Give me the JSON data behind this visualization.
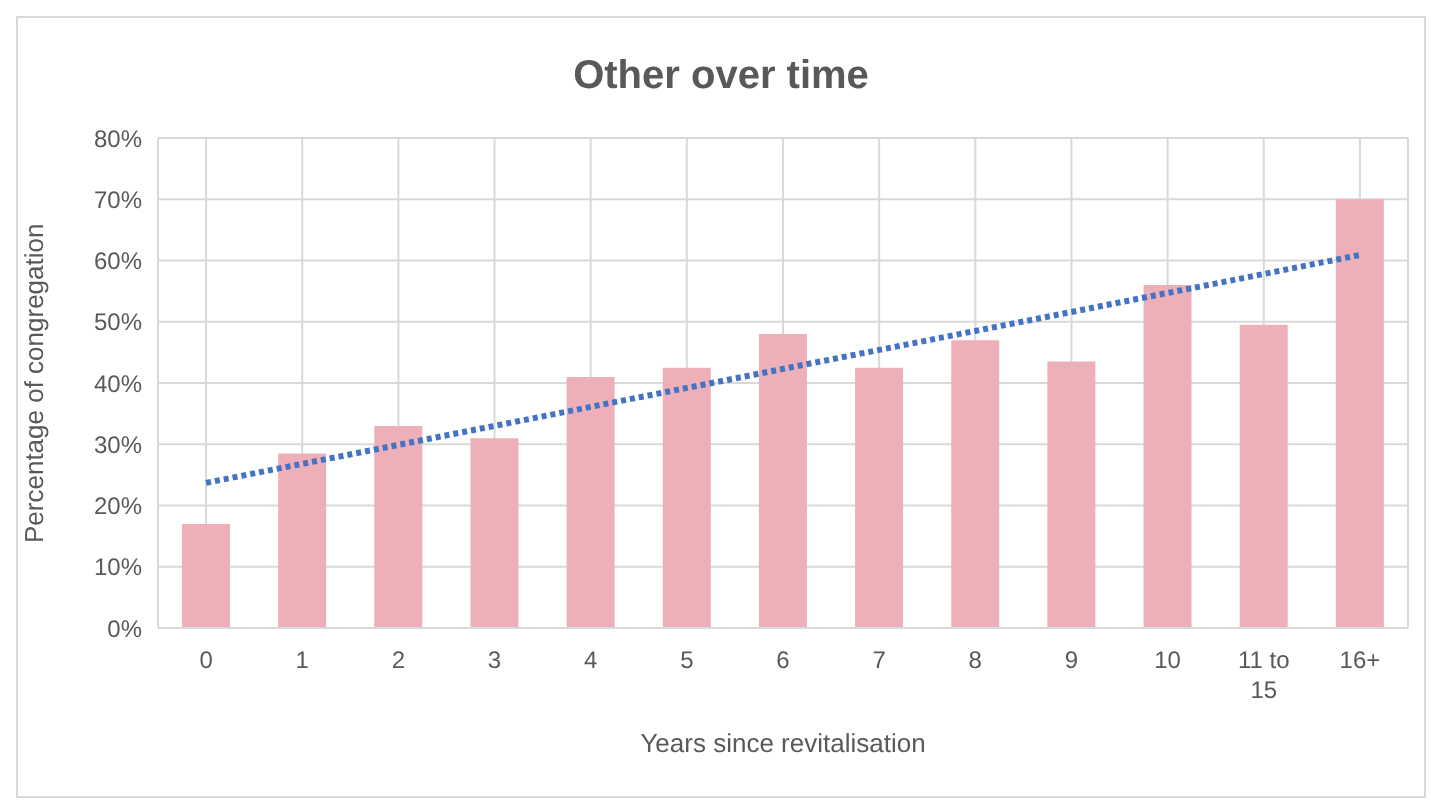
{
  "chart_data": {
    "type": "bar",
    "title": "Other over time",
    "xlabel": "Years since revitalisation",
    "ylabel": "Percentage of congregation",
    "categories": [
      "0",
      "1",
      "2",
      "3",
      "4",
      "5",
      "6",
      "7",
      "8",
      "9",
      "10",
      "11 to 15",
      "16+"
    ],
    "series": [
      {
        "color": "#eeb0b8",
        "values": [
          17,
          28.5,
          33,
          31,
          41,
          42.5,
          48,
          42.5,
          47,
          43.5,
          56,
          49.5,
          70
        ]
      },
      {
        "type": "line",
        "color": "#4472c4",
        "line_style": "dotted",
        "marker": "none",
        "values": [
          23.7,
          26.8,
          29.9,
          33.0,
          36.1,
          39.2,
          42.3,
          45.4,
          48.5,
          51.6,
          54.7,
          57.8,
          60.9
        ]
      }
    ],
    "ylim": [
      0,
      80
    ],
    "yticks": [
      {
        "value": 0,
        "label": "0%"
      },
      {
        "value": 10,
        "label": "10%"
      },
      {
        "value": 20,
        "label": "20%"
      },
      {
        "value": 30,
        "label": "30%"
      },
      {
        "value": 40,
        "label": "40%"
      },
      {
        "value": 50,
        "label": "50%"
      },
      {
        "value": 60,
        "label": "60%"
      },
      {
        "value": 70,
        "label": "70%"
      },
      {
        "value": 80,
        "label": "80%"
      }
    ],
    "grid": true,
    "legend": false
  }
}
